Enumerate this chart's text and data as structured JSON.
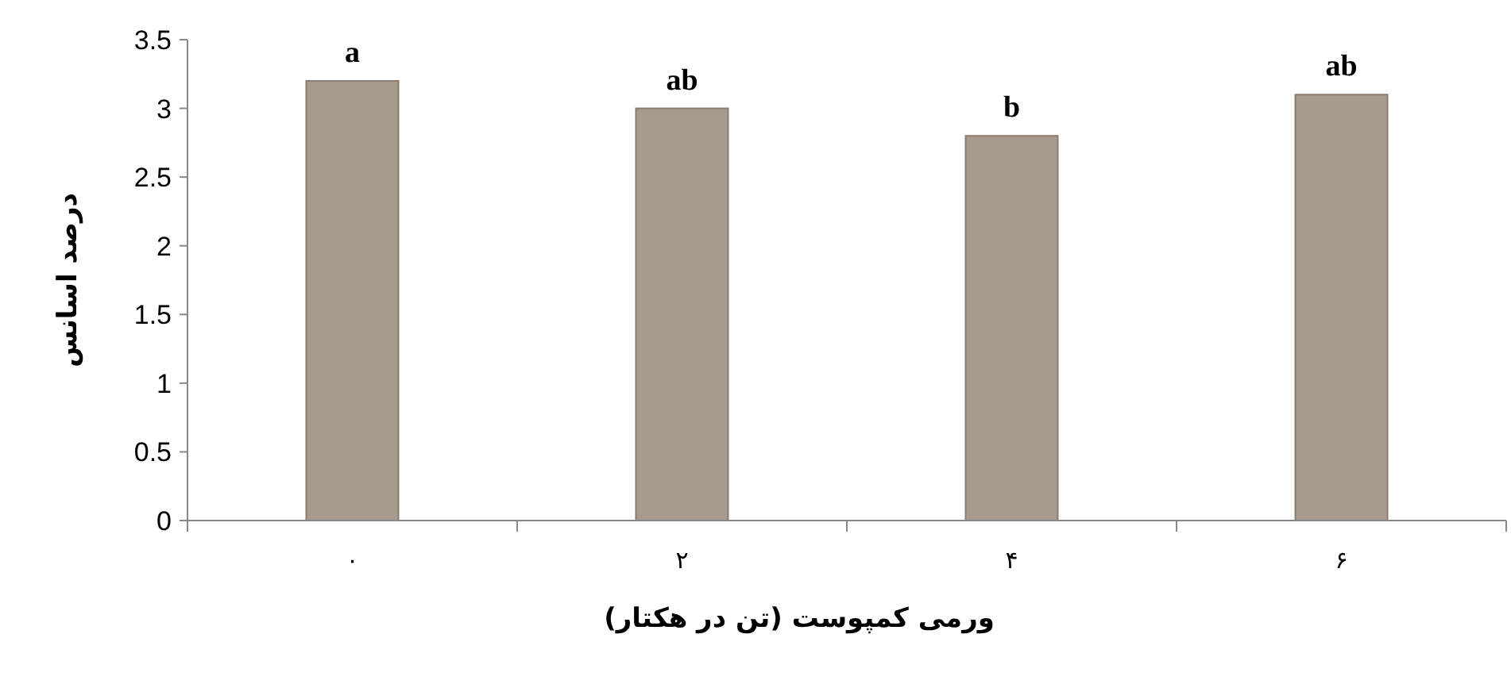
{
  "chart_data": {
    "type": "bar",
    "categories": [
      "۰",
      "۲",
      "۴",
      "۶"
    ],
    "values": [
      3.2,
      3.0,
      2.8,
      3.1
    ],
    "color": "#a89a8c",
    "ylim": [
      0,
      3.5
    ],
    "yticks": [
      0,
      0.5,
      1,
      1.5,
      2,
      2.5,
      3,
      3.5
    ],
    "xlabel": "ورمی کمپوست (تن در هکتار)",
    "ylabel": "درصد اسانس",
    "annotations": [
      {
        "text": "a",
        "x": "۰",
        "y": 3.2
      },
      {
        "text": "ab",
        "x": "۲",
        "y": 3.0
      },
      {
        "text": "b",
        "x": "۴",
        "y": 2.8
      },
      {
        "text": "ab",
        "x": "۶",
        "y": 3.1
      }
    ]
  }
}
